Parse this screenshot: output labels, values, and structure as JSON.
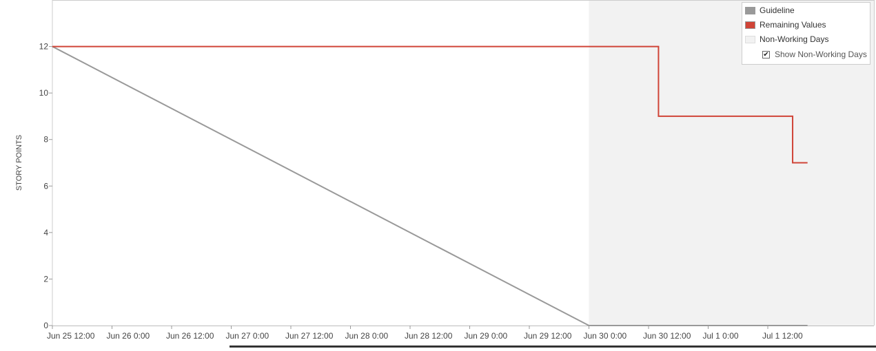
{
  "chart_data": {
    "type": "line",
    "title": "",
    "xlabel": "",
    "ylabel": "STORY POINTS",
    "ylim": [
      0,
      14
    ],
    "y_ticks": [
      0,
      2,
      4,
      6,
      8,
      10,
      12
    ],
    "x_ticks": [
      "Jun 25 12:00",
      "Jun 26 0:00",
      "Jun 26 12:00",
      "Jun 27 0:00",
      "Jun 27 12:00",
      "Jun 28 0:00",
      "Jun 28 12:00",
      "Jun 29 0:00",
      "Jun 29 12:00",
      "Jun 30 0:00",
      "Jun 30 12:00",
      "Jul 1 0:00",
      "Jul 1 12:00"
    ],
    "x_unit": "hours",
    "non_working_start": "Jun 30 0:00",
    "grid": false,
    "legend_position": "top-right",
    "series": [
      {
        "name": "Guideline",
        "color": "#999999",
        "step": false,
        "points": [
          {
            "x": "Jun 25 12:00",
            "y": 12
          },
          {
            "x": "Jun 30 0:00",
            "y": 0
          },
          {
            "x": "Jul 1 20:00",
            "y": 0
          }
        ]
      },
      {
        "name": "Remaining Values",
        "color": "#d04437",
        "step": true,
        "points": [
          {
            "x": "Jun 25 12:00",
            "y": 12
          },
          {
            "x": "Jun 30 14:00",
            "y": 9
          },
          {
            "x": "Jul 1 17:00",
            "y": 7
          },
          {
            "x": "Jul 1 20:00",
            "y": 7
          }
        ]
      }
    ]
  },
  "legend": {
    "items": [
      {
        "label": "Guideline",
        "color": "#999999"
      },
      {
        "label": "Remaining Values",
        "color": "#d04437"
      },
      {
        "label": "Non-Working Days",
        "color": "#f2f2f2"
      }
    ],
    "show_non_working_label": "Show Non-Working Days",
    "show_non_working_checked": true
  }
}
